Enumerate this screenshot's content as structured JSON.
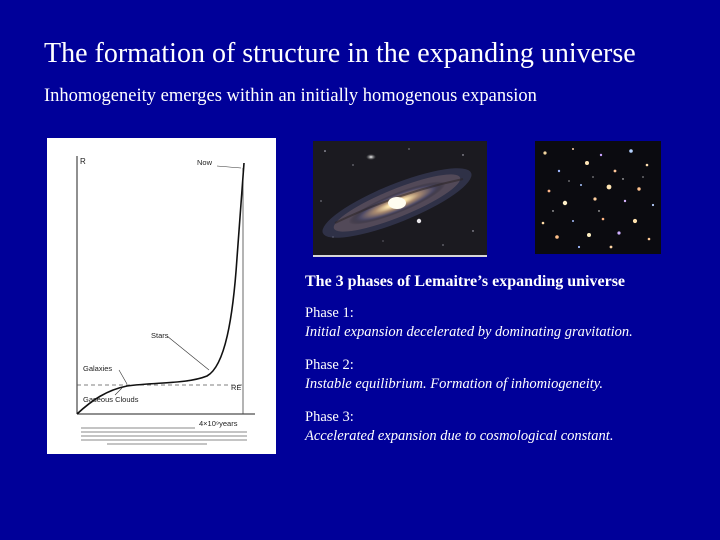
{
  "slide": {
    "title": "The formation of structure in the expanding universe",
    "subtitle": "Inhomogeneity emerges within an initially homogenous expansion"
  },
  "figure": {
    "y_axis_label": "R",
    "now_label": "Now",
    "stars_label": "Stars",
    "galaxies_label": "Galaxies",
    "gaseous_clouds_label": "Gaseous Clouds",
    "re_label": "RE",
    "time_label": "4×10⁹years"
  },
  "phases": {
    "heading": "The 3 phases of Lemaitre’s expanding universe",
    "items": [
      {
        "label": "Phase 1:",
        "description": "Initial expansion decelerated by dominating gravitation."
      },
      {
        "label": "Phase 2:",
        "description": "Instable equilibrium. Formation of  inhomiogeneity."
      },
      {
        "label": "Phase 3:",
        "description": "Accelerated expansion due to cosmological constant."
      }
    ]
  },
  "colors": {
    "background": "#000099",
    "text": "#ffffff"
  }
}
